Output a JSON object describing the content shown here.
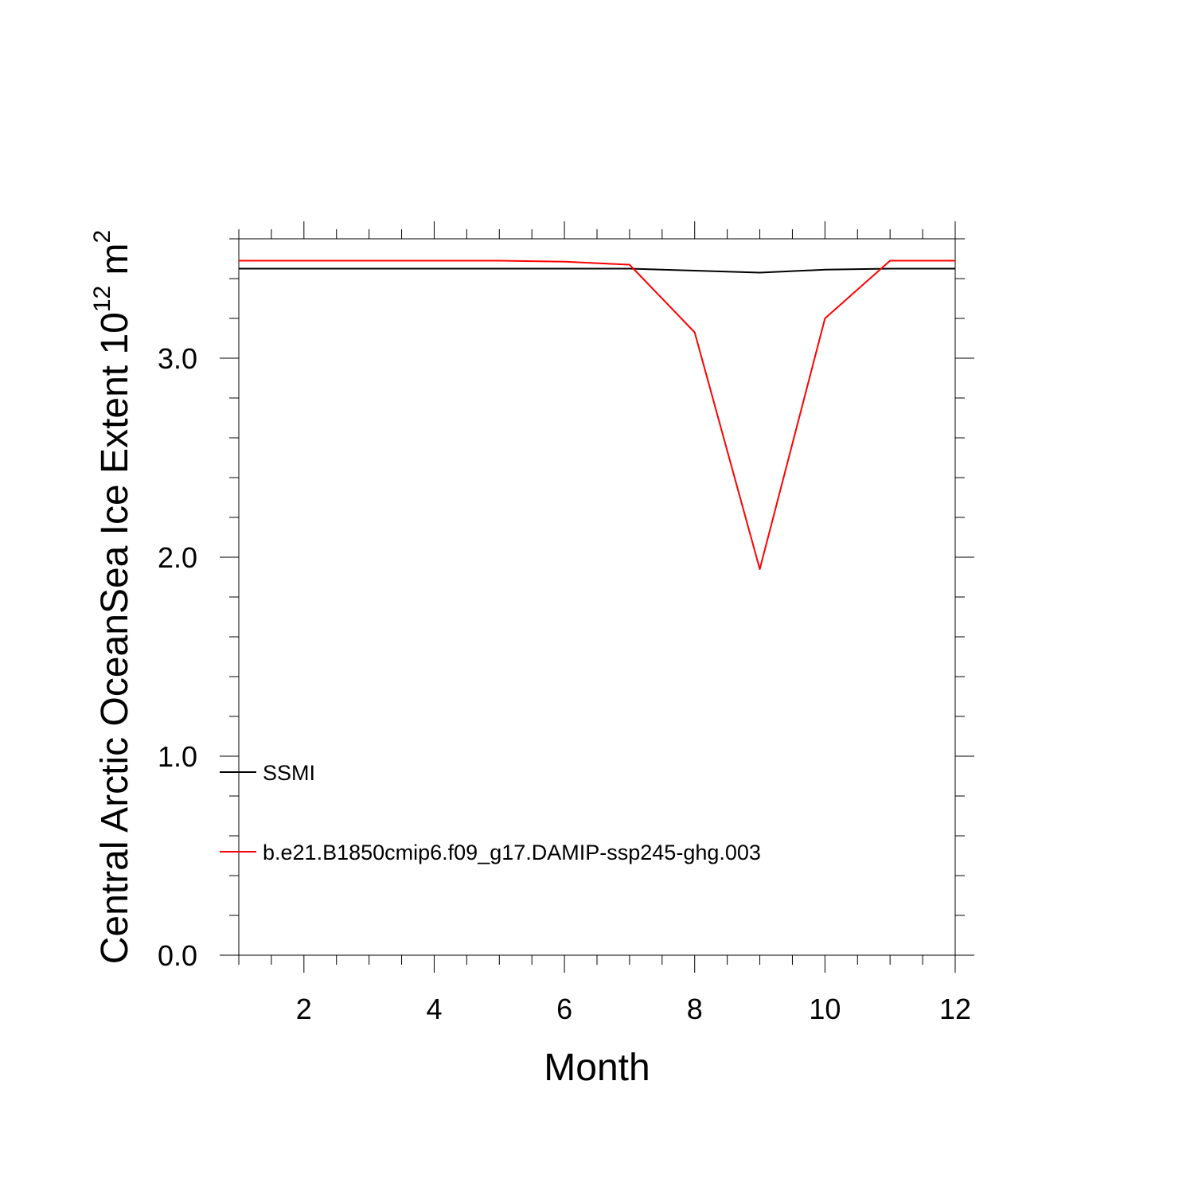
{
  "chart_data": {
    "type": "line",
    "xlabel": "Month",
    "ylabel": {
      "main": "Central Arctic OceanSea Ice Extent 10",
      "exp": "12",
      "unit": " m",
      "unit_exp": "2"
    },
    "xlim": [
      1,
      12
    ],
    "ylim": [
      0,
      3.6
    ],
    "x_ticks": [
      2,
      4,
      6,
      8,
      10,
      12
    ],
    "x_tick_labels": [
      "2",
      "4",
      "6",
      "8",
      "10",
      "12"
    ],
    "y_ticks": [
      0,
      1,
      2,
      3
    ],
    "y_tick_labels": [
      "0.0",
      "1.0",
      "2.0",
      "3.0"
    ],
    "grid": false,
    "legend_position": "lower-left",
    "x": [
      1,
      2,
      3,
      4,
      5,
      6,
      7,
      8,
      9,
      10,
      11,
      12
    ],
    "series": [
      {
        "name": "SSMI",
        "color": "#000000",
        "values": [
          3.45,
          3.45,
          3.45,
          3.45,
          3.45,
          3.45,
          3.45,
          3.44,
          3.43,
          3.445,
          3.45,
          3.45
        ]
      },
      {
        "name": "b.e21.B1850cmip6.f09_g17.DAMIP-ssp245-ghg.003",
        "color": "#ff0000",
        "values": [
          3.49,
          3.49,
          3.49,
          3.49,
          3.49,
          3.485,
          3.47,
          3.13,
          1.94,
          3.2,
          3.49,
          3.49
        ]
      }
    ]
  }
}
